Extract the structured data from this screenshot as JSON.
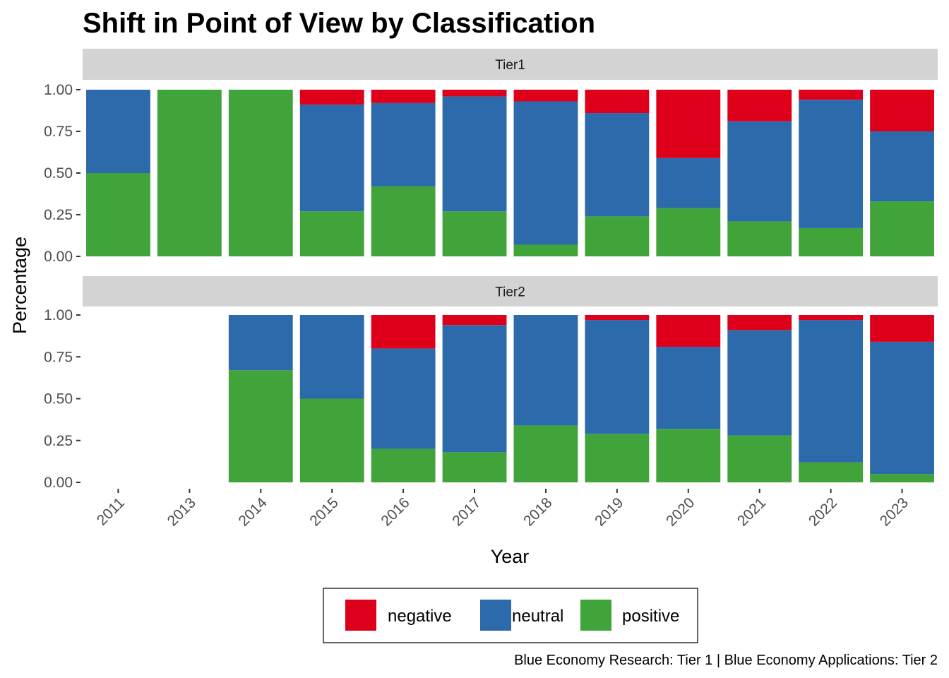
{
  "chart_data": {
    "type": "bar",
    "stacked": true,
    "title": "Shift in Point of View by Classification",
    "xlabel": "Year",
    "ylabel": "Percentage",
    "caption": "Blue Economy Research: Tier 1 | Blue Economy Applications: Tier 2",
    "ylim": [
      0,
      1
    ],
    "yticks": [
      "0.00",
      "0.25",
      "0.50",
      "0.75",
      "1.00"
    ],
    "categories": [
      "2011",
      "2013",
      "2014",
      "2015",
      "2016",
      "2017",
      "2018",
      "2019",
      "2020",
      "2021",
      "2022",
      "2023"
    ],
    "grid": false,
    "legend_position": "bottom",
    "colors": {
      "negative": "#DE001A",
      "neutral": "#2C6AAB",
      "positive": "#41A43B"
    },
    "stack_order": [
      "positive",
      "neutral",
      "negative"
    ],
    "panels": [
      {
        "strip": "Tier1",
        "series": [
          {
            "name": "negative",
            "values": [
              0,
              0,
              0,
              0.09,
              0.08,
              0.04,
              0.07,
              0.14,
              0.41,
              0.19,
              0.06,
              0.25
            ]
          },
          {
            "name": "neutral",
            "values": [
              0.5,
              0,
              0,
              0.64,
              0.5,
              0.69,
              0.86,
              0.62,
              0.3,
              0.6,
              0.77,
              0.42
            ]
          },
          {
            "name": "positive",
            "values": [
              0.5,
              1.0,
              1.0,
              0.27,
              0.42,
              0.27,
              0.07,
              0.24,
              0.29,
              0.21,
              0.17,
              0.33
            ]
          }
        ]
      },
      {
        "strip": "Tier2",
        "series": [
          {
            "name": "negative",
            "values": [
              null,
              null,
              0,
              0,
              0.2,
              0.06,
              0,
              0.03,
              0.19,
              0.09,
              0.03,
              0.16
            ]
          },
          {
            "name": "neutral",
            "values": [
              null,
              null,
              0.33,
              0.5,
              0.6,
              0.76,
              0.66,
              0.68,
              0.49,
              0.63,
              0.85,
              0.79
            ]
          },
          {
            "name": "positive",
            "values": [
              null,
              null,
              0.67,
              0.5,
              0.2,
              0.18,
              0.34,
              0.29,
              0.32,
              0.28,
              0.12,
              0.05
            ]
          }
        ]
      }
    ],
    "legend": [
      "negative",
      "neutral",
      "positive"
    ]
  }
}
